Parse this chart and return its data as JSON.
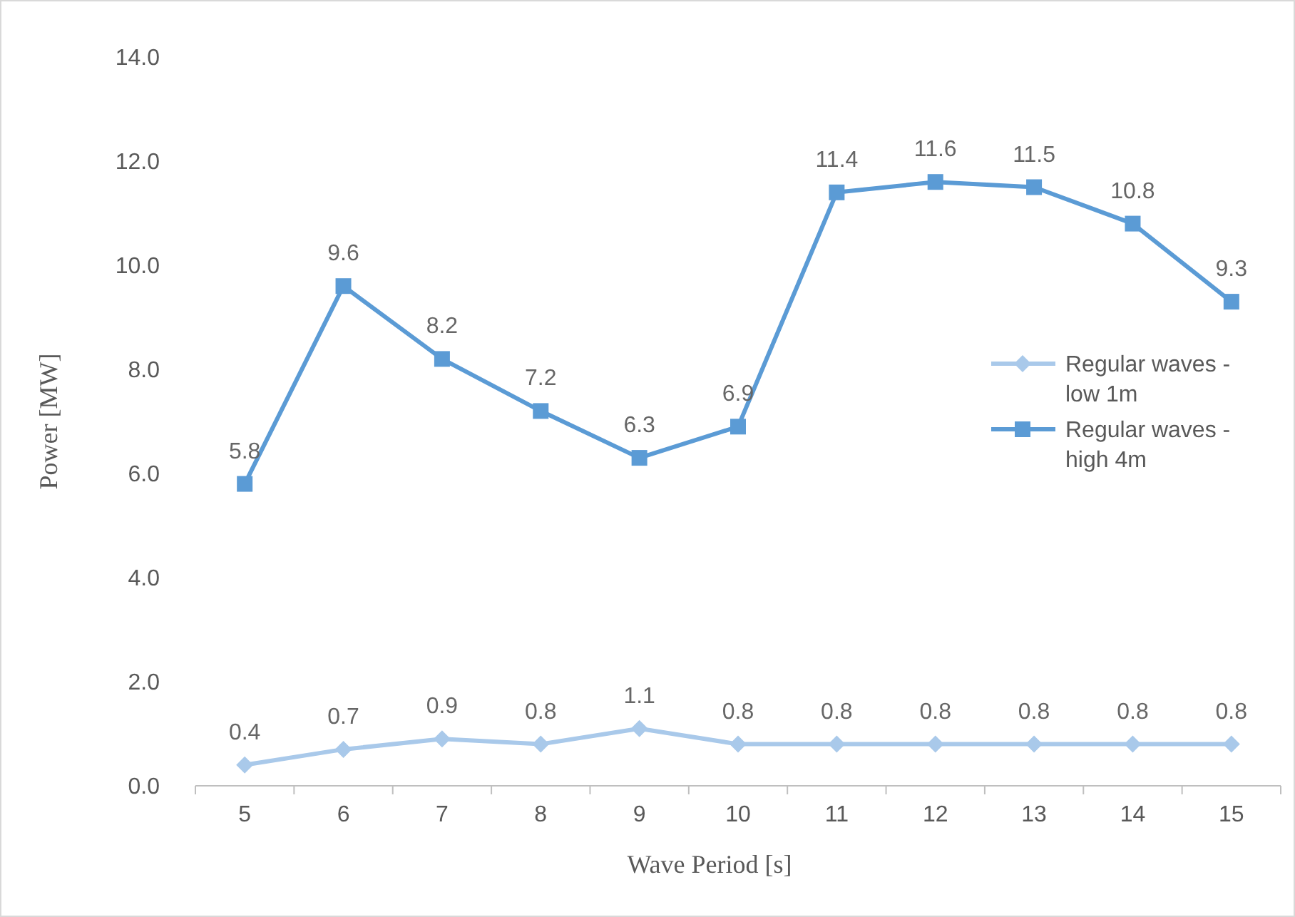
{
  "chart_data": {
    "type": "line",
    "xlabel": "Wave Period [s]",
    "ylabel": "Power [MW]",
    "categories": [
      "5",
      "6",
      "7",
      "8",
      "9",
      "10",
      "11",
      "12",
      "13",
      "14",
      "15"
    ],
    "series": [
      {
        "name": "Regular waves - low 1m",
        "color": "#a9c9ea",
        "marker": "diamond",
        "values": [
          0.4,
          0.7,
          0.9,
          0.8,
          1.1,
          0.8,
          0.8,
          0.8,
          0.8,
          0.8,
          0.8
        ]
      },
      {
        "name": "Regular waves - high 4m",
        "color": "#5b9bd5",
        "marker": "square",
        "values": [
          5.8,
          9.6,
          8.2,
          7.2,
          6.3,
          6.9,
          11.4,
          11.6,
          11.5,
          10.8,
          9.3
        ]
      }
    ],
    "ylim": [
      0,
      14
    ],
    "yticks": [
      {
        "value": 0,
        "label": "0.0"
      },
      {
        "value": 2,
        "label": "2.0"
      },
      {
        "value": 4,
        "label": "4.0"
      },
      {
        "value": 6,
        "label": "6.0"
      },
      {
        "value": 8,
        "label": "8.0"
      },
      {
        "value": 10,
        "label": "10.0"
      },
      {
        "value": 12,
        "label": "12.0"
      },
      {
        "value": 14,
        "label": "14.0"
      }
    ],
    "grid": false,
    "legend": "right",
    "data_labels": true
  }
}
